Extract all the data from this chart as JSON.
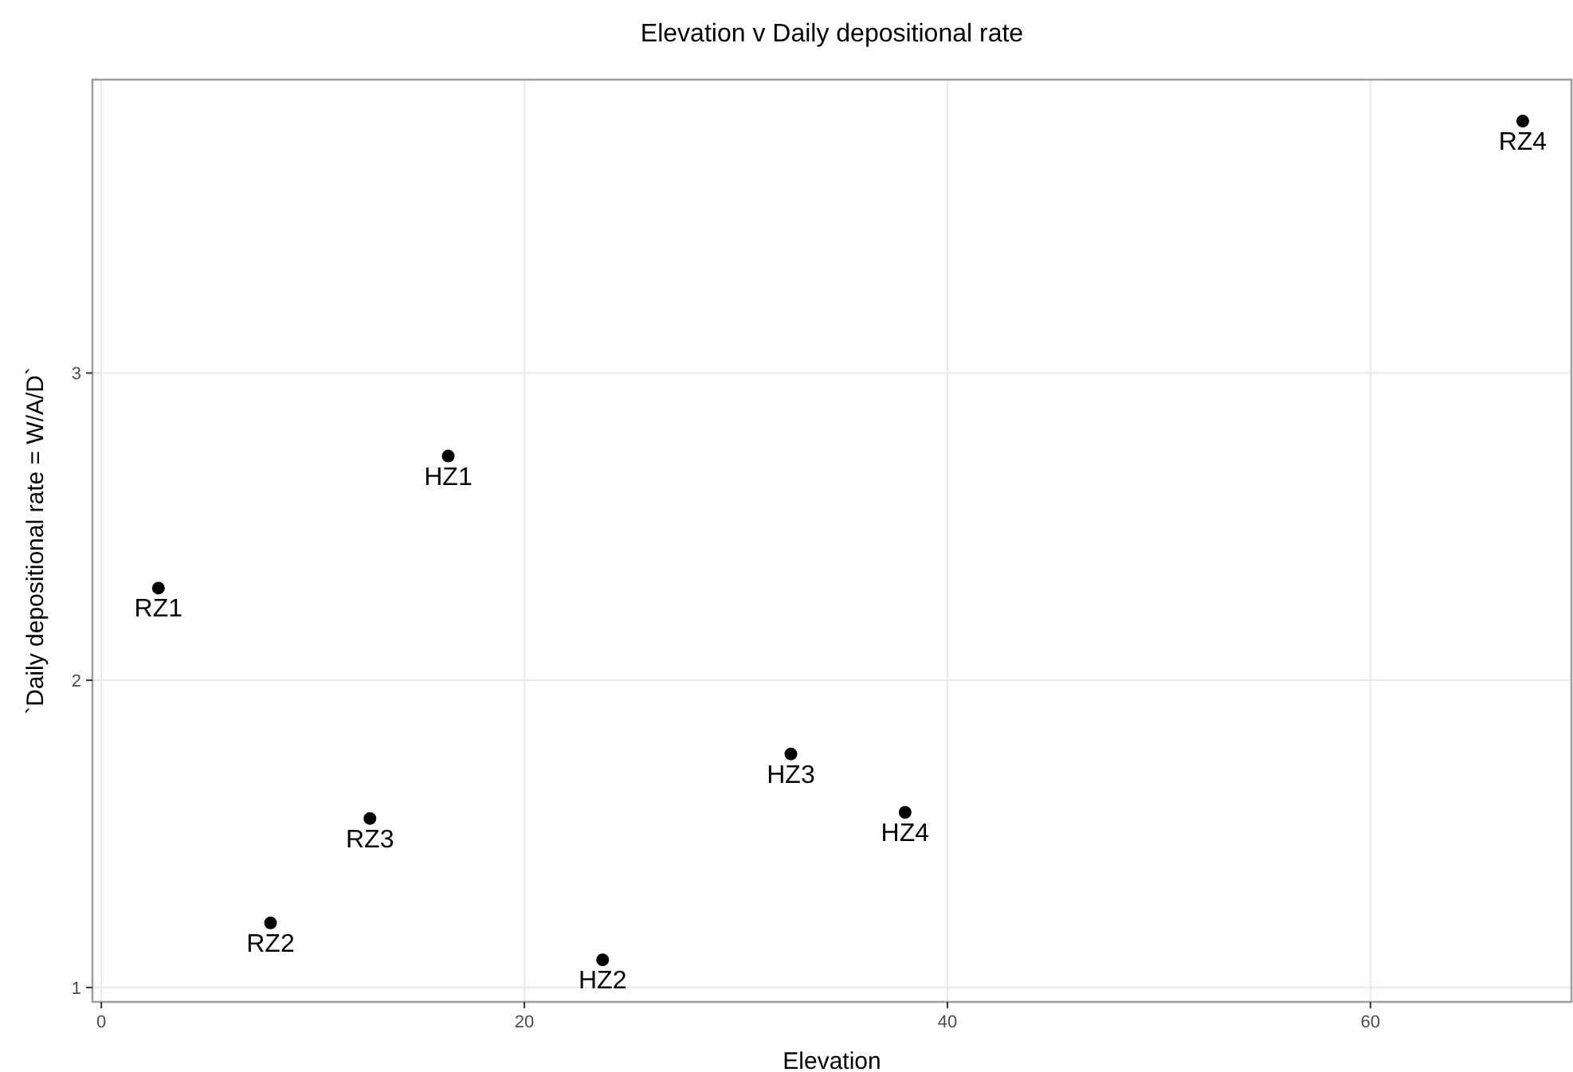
{
  "chart_data": {
    "type": "scatter",
    "title": "Elevation v Daily depositional rate",
    "xlabel": "Elevation",
    "ylabel": "`Daily depositional rate = W/A/D`",
    "x": [
      2.7,
      8.0,
      12.7,
      67.2,
      16.4,
      23.7,
      32.6,
      38.0
    ],
    "series": [
      {
        "color": "#000000",
        "values": [
          2.3,
          1.21,
          1.55,
          3.82,
          2.73,
          1.09,
          1.76,
          1.57
        ]
      }
    ],
    "annotations": [
      {
        "text": "RZ1",
        "x": 2.7,
        "y": 2.3
      },
      {
        "text": "RZ2",
        "x": 8.0,
        "y": 1.21
      },
      {
        "text": "RZ3",
        "x": 12.7,
        "y": 1.55
      },
      {
        "text": "RZ4",
        "x": 67.2,
        "y": 3.82
      },
      {
        "text": "HZ1",
        "x": 16.4,
        "y": 2.73
      },
      {
        "text": "HZ2",
        "x": 23.7,
        "y": 1.09
      },
      {
        "text": "HZ3",
        "x": 32.6,
        "y": 1.76
      },
      {
        "text": "HZ4",
        "x": 38.0,
        "y": 1.57
      }
    ],
    "xlim": [
      -0.42,
      69.5
    ],
    "ylim": [
      0.953,
      3.955
    ],
    "xticks": [
      0,
      20,
      40,
      60
    ],
    "yticks": [
      1,
      2,
      3
    ],
    "grid": true,
    "marker": "circle"
  }
}
